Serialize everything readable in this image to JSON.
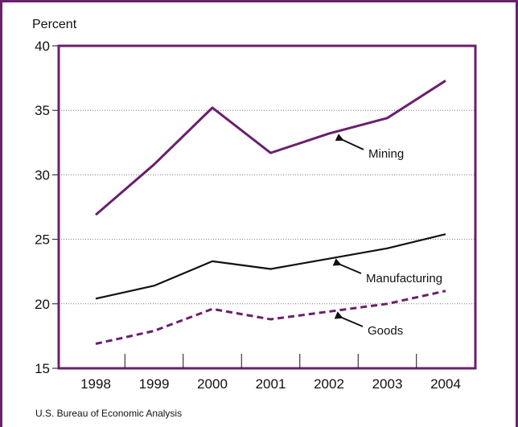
{
  "chart_data": {
    "type": "line",
    "ylabel": "Percent",
    "categories": [
      "1998",
      "1999",
      "2000",
      "2001",
      "2002",
      "2003",
      "2004"
    ],
    "ylim": [
      15,
      40
    ],
    "yticks": [
      15,
      20,
      25,
      30,
      35,
      40
    ],
    "grid": true,
    "series": [
      {
        "name": "Mining",
        "values": [
          26.9,
          30.8,
          35.2,
          31.7,
          33.2,
          34.4,
          37.3
        ],
        "color": "#6b1f6e",
        "dash": "solid"
      },
      {
        "name": "Manufacturing",
        "values": [
          20.4,
          21.4,
          23.3,
          22.7,
          23.5,
          24.3,
          25.4
        ],
        "color": "#111111",
        "dash": "solid"
      },
      {
        "name": "Goods",
        "values": [
          16.9,
          17.9,
          19.6,
          18.8,
          19.4,
          20.0,
          21.0
        ],
        "color": "#6b1f6e",
        "dash": "dashed"
      }
    ],
    "source": "U.S. Bureau of Economic Analysis"
  }
}
